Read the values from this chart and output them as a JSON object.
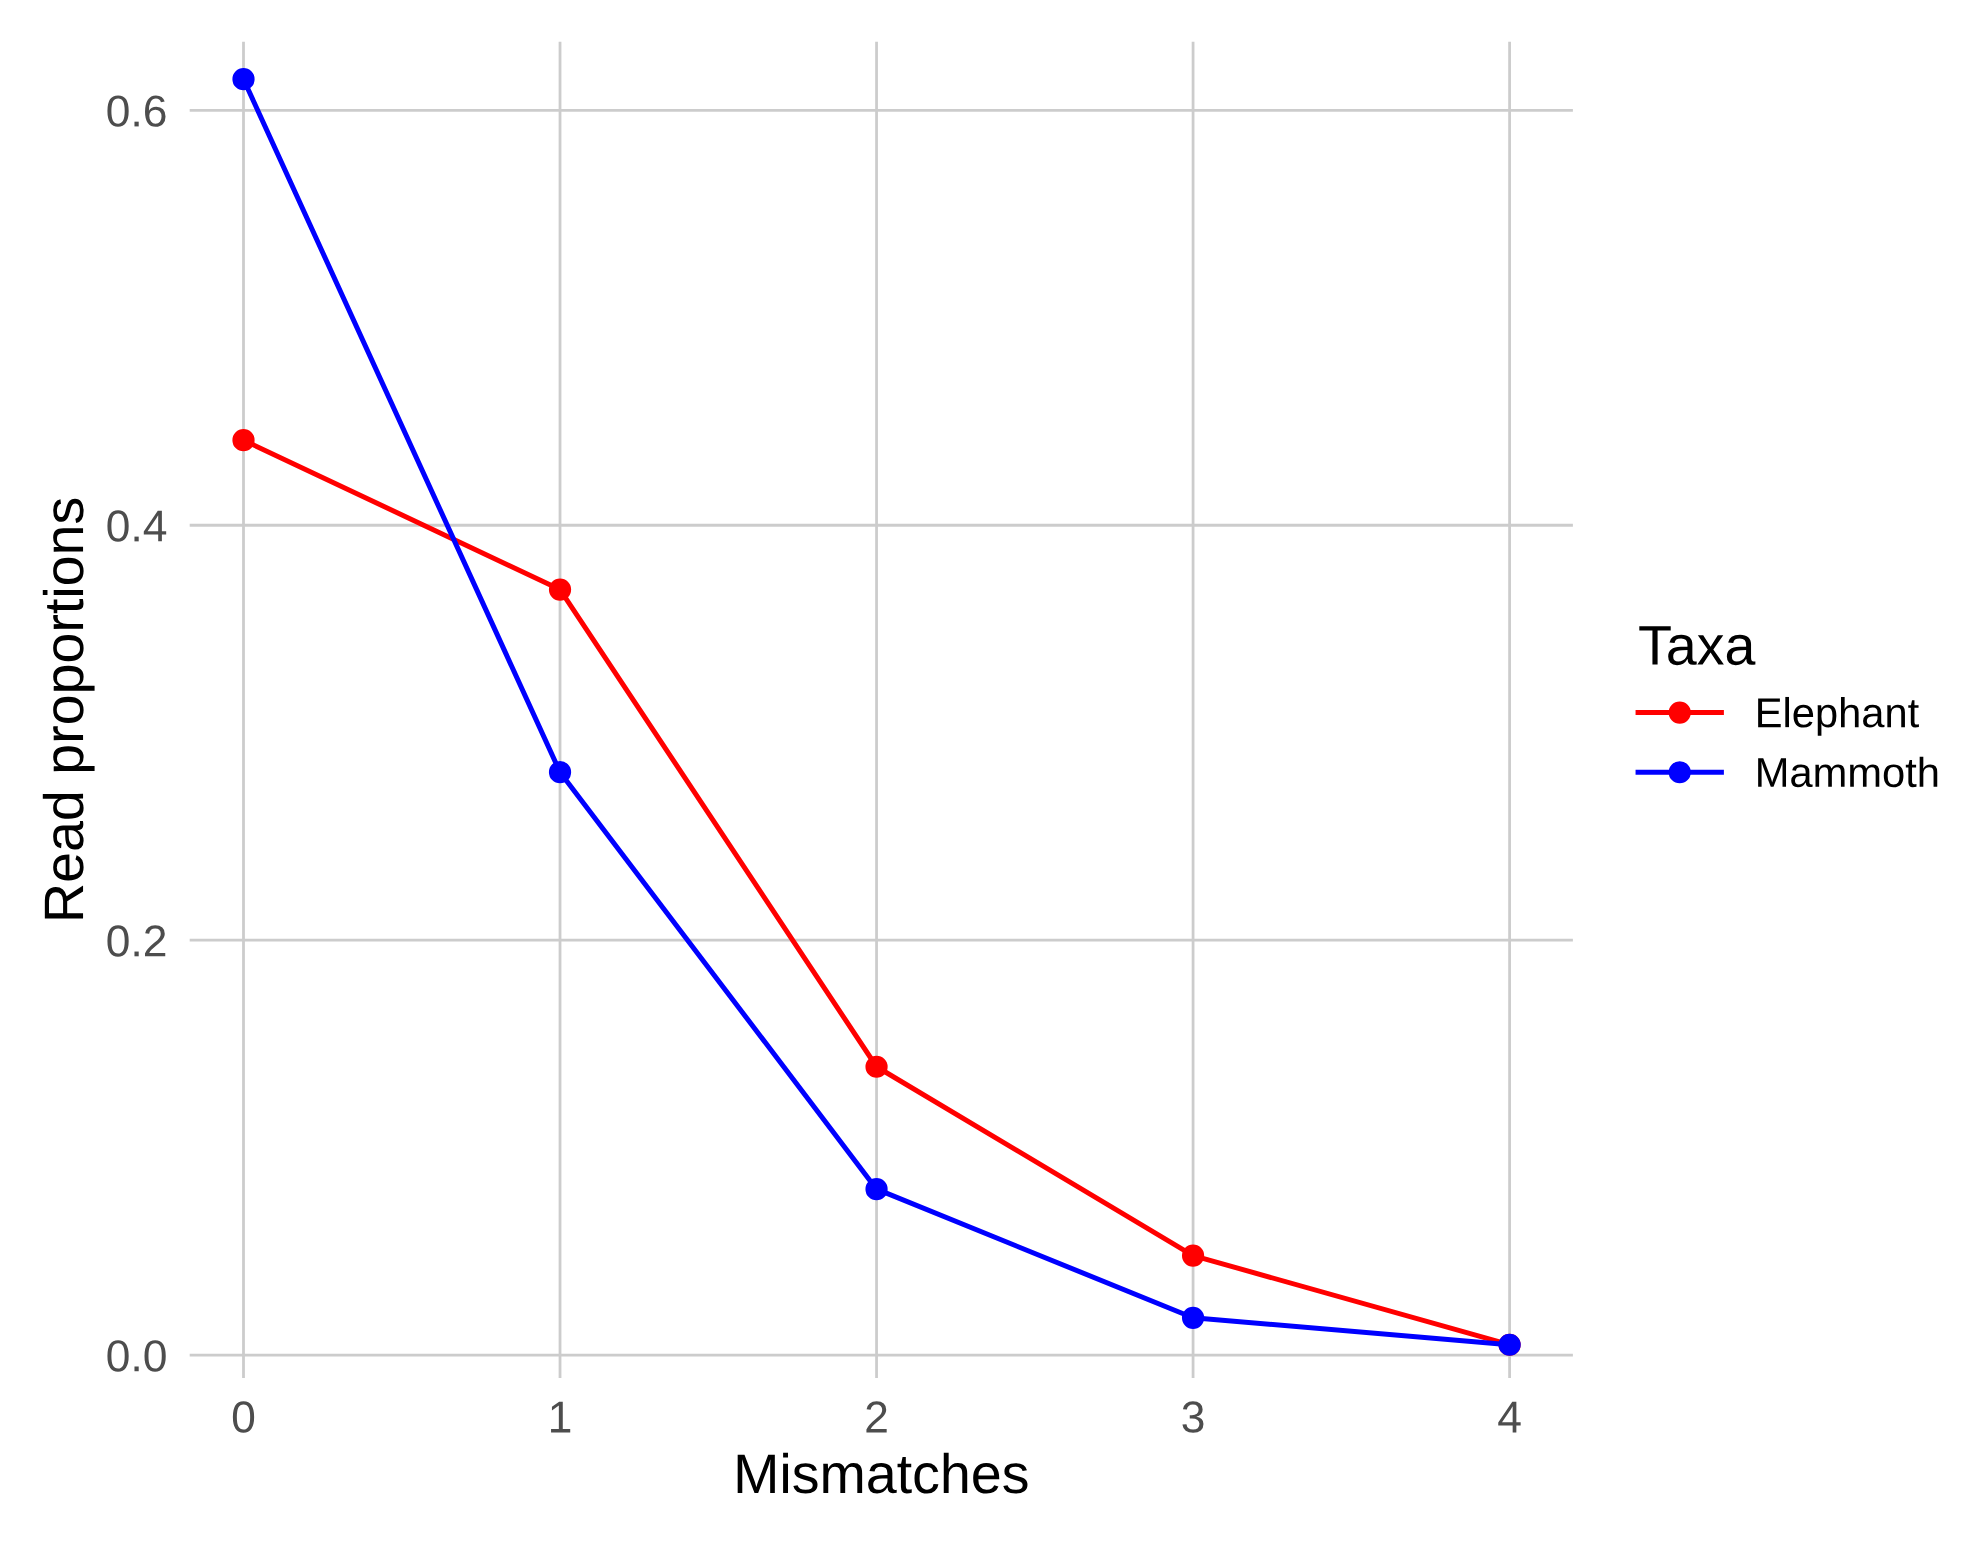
{
  "chart_data": {
    "type": "line",
    "xlabel": "Mismatches",
    "ylabel": "Read proportions",
    "legend_title": "Taxa",
    "x": [
      0,
      1,
      2,
      3,
      4
    ],
    "series": [
      {
        "name": "Elephant",
        "color": "#ff0000",
        "values": [
          0.441,
          0.369,
          0.139,
          0.048,
          0.005
        ]
      },
      {
        "name": "Mammoth",
        "color": "#0000ff",
        "values": [
          0.615,
          0.281,
          0.08,
          0.018,
          0.005
        ]
      }
    ],
    "xlim": [
      -0.17,
      4.2
    ],
    "ylim": [
      -0.011,
      0.633
    ],
    "xticks": [
      0,
      1,
      2,
      3,
      4
    ],
    "yticks": [
      {
        "value": 0,
        "label": "0.0"
      },
      {
        "value": 0.2,
        "label": "0.2"
      },
      {
        "value": 0.4,
        "label": "0.4"
      },
      {
        "value": 0.6,
        "label": "0.6"
      }
    ],
    "grid": true,
    "legend": "right",
    "marker": "circle",
    "line_style": "solid"
  }
}
